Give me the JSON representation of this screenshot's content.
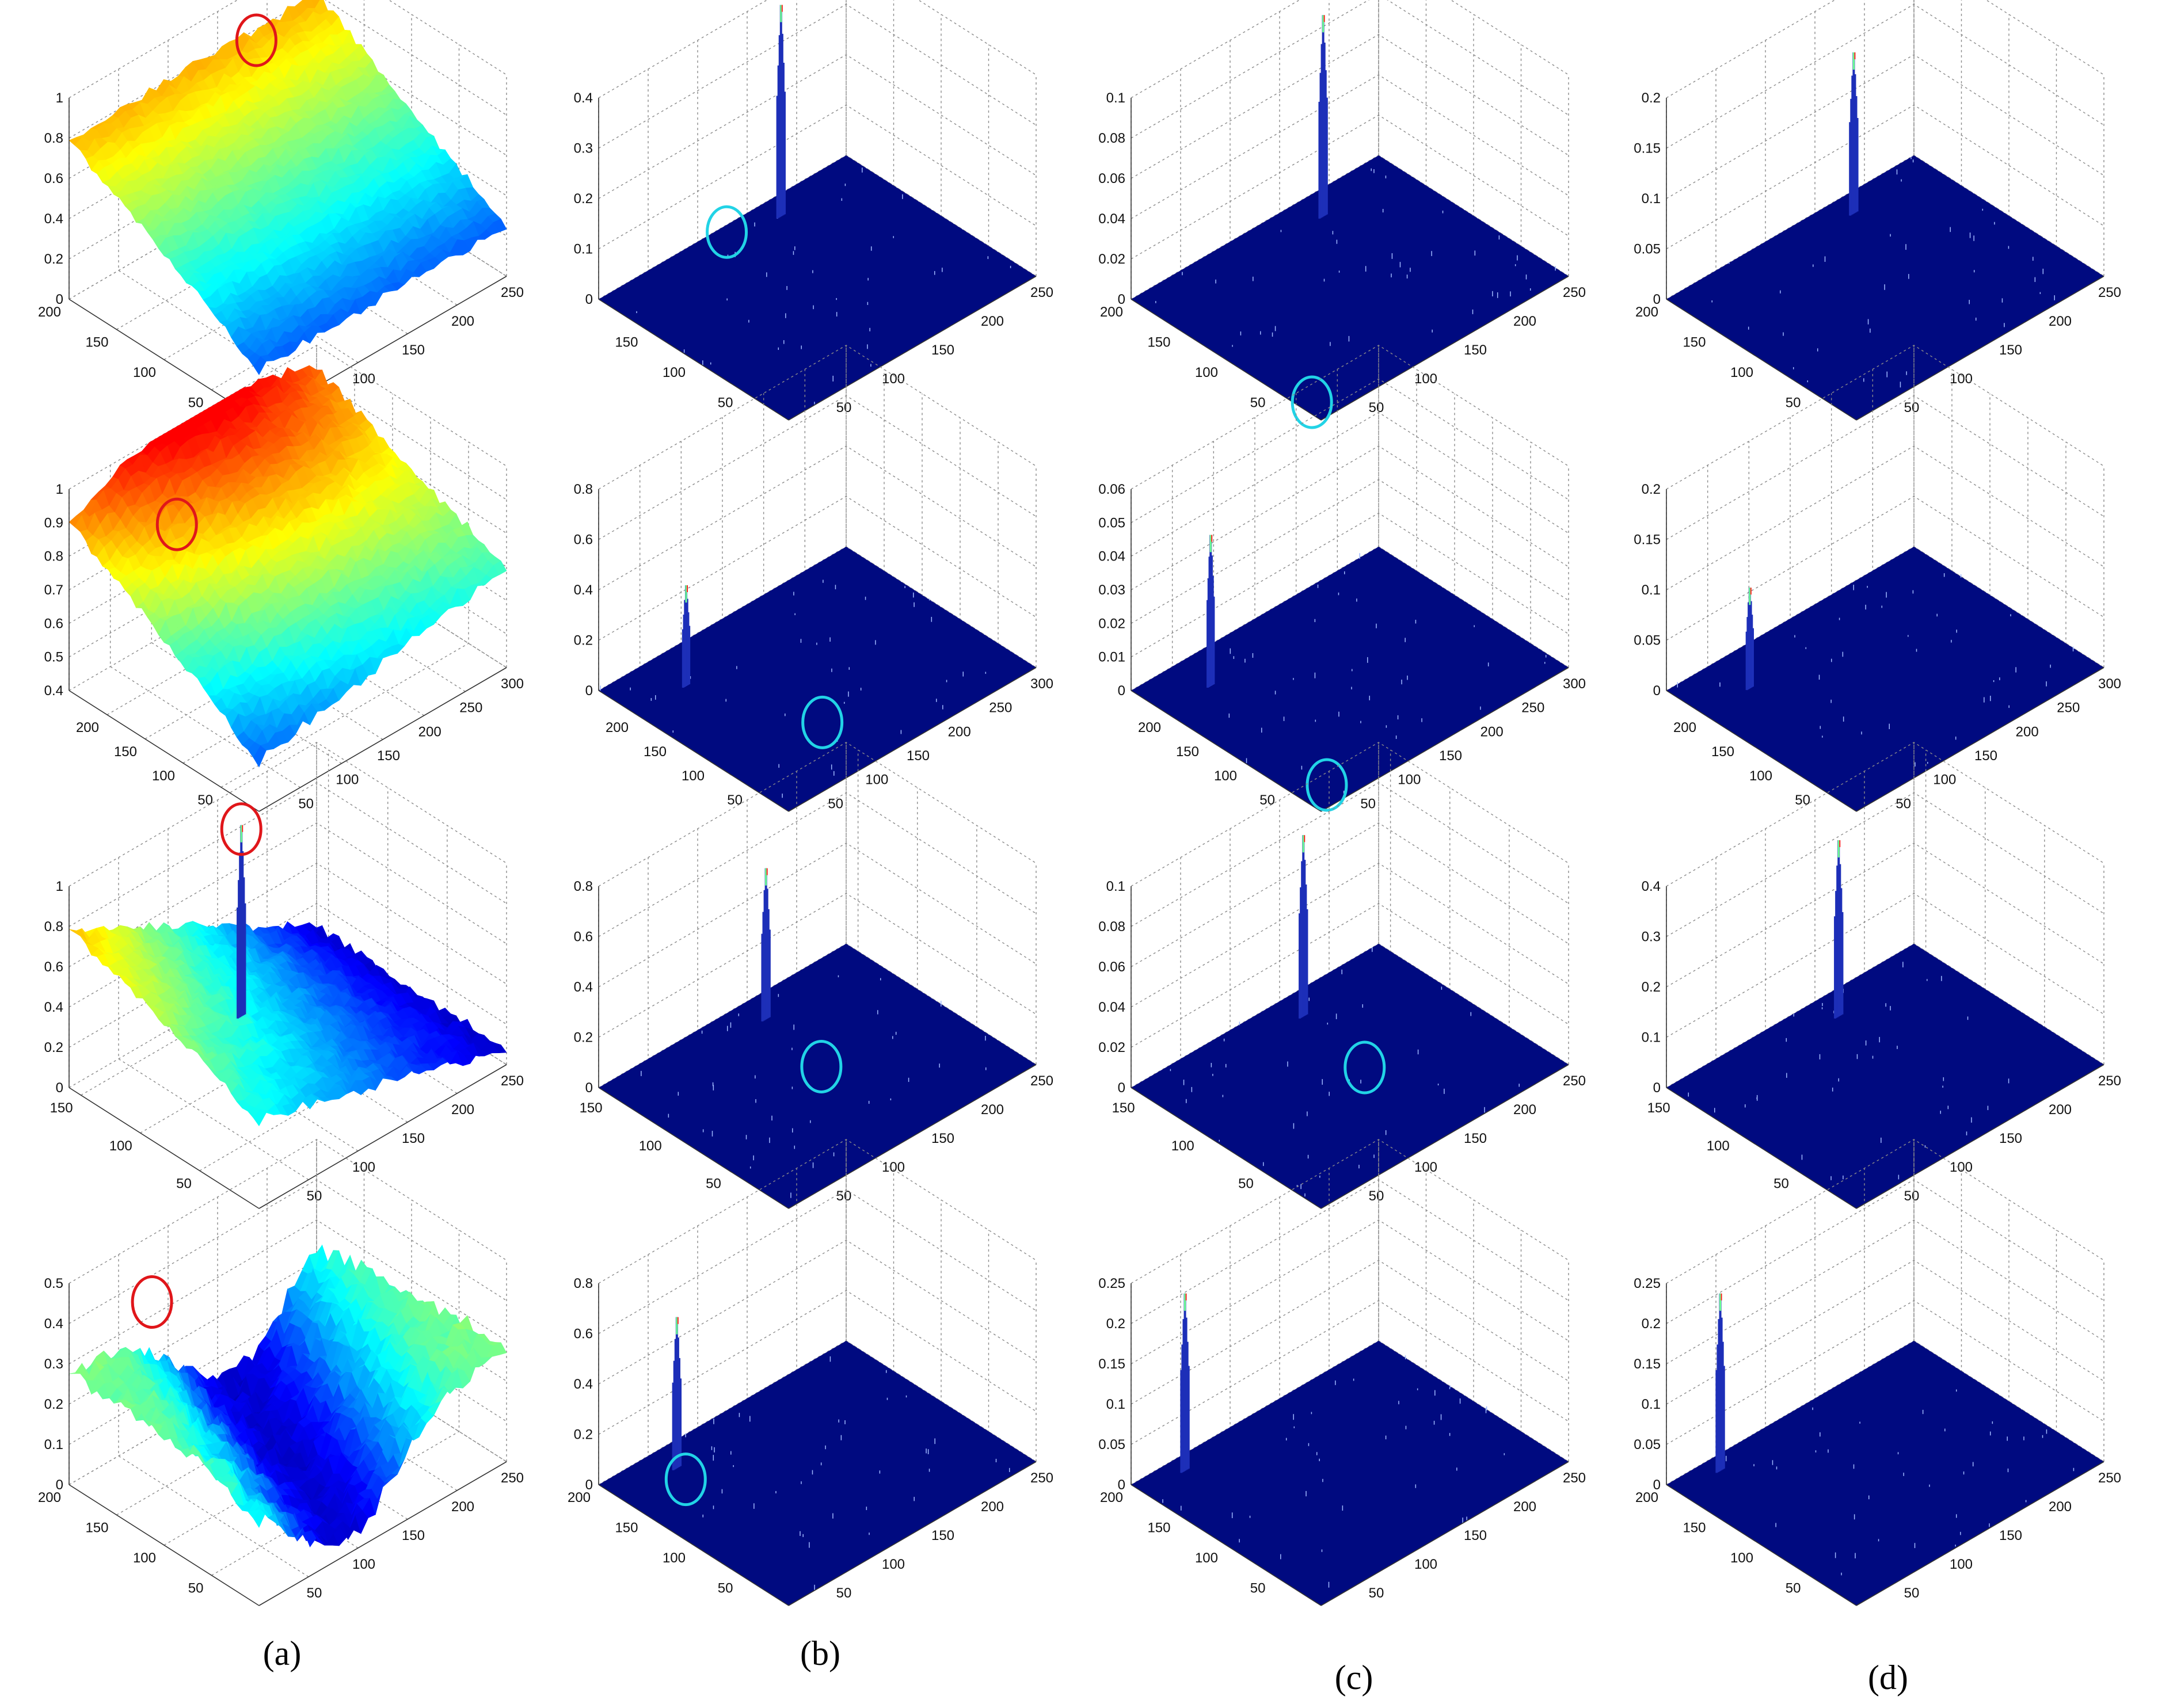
{
  "figure": {
    "column_captions": [
      "(a)",
      "(b)",
      "(c)",
      "(d)"
    ]
  },
  "style": {
    "floor_color": "#000a80",
    "peak_color": "#1d2fb8",
    "circle_red": "#e0161a",
    "circle_cyan": "#22d3e6",
    "grid_color": "#8a8a8a",
    "axis_color": "#333333",
    "colormap": [
      "#00008f",
      "#0000ff",
      "#0080ff",
      "#00ffff",
      "#80ff80",
      "#ffff00",
      "#ff8000",
      "#ff0000"
    ]
  },
  "chart_data": [
    {
      "row": 0,
      "col": 0,
      "type": "surface",
      "surface": "ramp",
      "xlim": [
        0,
        250
      ],
      "ylim": [
        0,
        200
      ],
      "zlim": [
        0,
        1
      ],
      "x_ticks": [
        "50",
        "100",
        "150",
        "200",
        "250"
      ],
      "y_ticks": [
        "50",
        "100",
        "150",
        "200"
      ],
      "z_ticks": [
        "0",
        "0.2",
        "0.4",
        "0.6",
        "0.8",
        "1"
      ],
      "circle": "red",
      "circle_pos": [
        170,
        180,
        0.86
      ]
    },
    {
      "row": 0,
      "col": 1,
      "type": "surface",
      "surface": "peaks",
      "xlim": [
        0,
        250
      ],
      "ylim": [
        0,
        200
      ],
      "zlim": [
        0,
        0.4
      ],
      "x_ticks": [
        "50",
        "100",
        "150",
        "200",
        "250"
      ],
      "y_ticks": [
        "50",
        "100",
        "150"
      ],
      "z_ticks": [
        "0",
        "0.1",
        "0.2",
        "0.3",
        "0.4"
      ],
      "peaks": [
        [
          165,
          180,
          0.42
        ]
      ],
      "circle": "cyan",
      "circle_pos": [
        115,
        185,
        0.02
      ]
    },
    {
      "row": 0,
      "col": 2,
      "type": "surface",
      "surface": "peaks",
      "xlim": [
        0,
        250
      ],
      "ylim": [
        0,
        200
      ],
      "zlim": [
        0,
        0.1
      ],
      "x_ticks": [
        "50",
        "100",
        "150",
        "200",
        "250"
      ],
      "y_ticks": [
        "50",
        "100",
        "150",
        "200"
      ],
      "z_ticks": [
        "0",
        "0.02",
        "0.04",
        "0.06",
        "0.08",
        "0.1"
      ],
      "peaks": [
        [
          170,
          175,
          0.1
        ]
      ],
      "circle": "cyan",
      "circle_pos": [
        10,
        20,
        0.0
      ]
    },
    {
      "row": 0,
      "col": 3,
      "type": "surface",
      "surface": "peaks",
      "xlim": [
        0,
        250
      ],
      "ylim": [
        0,
        200
      ],
      "zlim": [
        0,
        0.2
      ],
      "x_ticks": [
        "50",
        "100",
        "150",
        "200",
        "250"
      ],
      "y_ticks": [
        "50",
        "100",
        "150",
        "200"
      ],
      "z_ticks": [
        "0",
        "0.05",
        "0.1",
        "0.15",
        "0.2"
      ],
      "peaks": [
        [
          170,
          180,
          0.16
        ]
      ],
      "circle": "none"
    },
    {
      "row": 1,
      "col": 0,
      "type": "surface",
      "surface": "dome",
      "xlim": [
        0,
        300
      ],
      "ylim": [
        0,
        250
      ],
      "zlim": [
        0.4,
        1
      ],
      "x_ticks": [
        "50",
        "100",
        "150",
        "200",
        "250",
        "300"
      ],
      "y_ticks": [
        "50",
        "100",
        "150",
        "200"
      ],
      "z_ticks": [
        "0.4",
        "0.5",
        "0.6",
        "0.7",
        "0.8",
        "0.9",
        "1"
      ],
      "circle": "red",
      "circle_pos": [
        80,
        195,
        0.86
      ]
    },
    {
      "row": 1,
      "col": 1,
      "type": "surface",
      "surface": "peaks",
      "xlim": [
        0,
        300
      ],
      "ylim": [
        0,
        250
      ],
      "zlim": [
        0,
        0.8
      ],
      "x_ticks": [
        "50",
        "100",
        "150",
        "200",
        "250",
        "300"
      ],
      "y_ticks": [
        "50",
        "100",
        "150",
        "200"
      ],
      "z_ticks": [
        "0",
        "0.2",
        "0.4",
        "0.6",
        "0.8"
      ],
      "peaks": [
        [
          60,
          200,
          0.4
        ]
      ],
      "circle": "cyan",
      "circle_pos": [
        110,
        75,
        0.0
      ]
    },
    {
      "row": 1,
      "col": 2,
      "type": "surface",
      "surface": "peaks",
      "xlim": [
        0,
        300
      ],
      "ylim": [
        0,
        250
      ],
      "zlim": [
        0,
        0.06
      ],
      "x_ticks": [
        "50",
        "100",
        "150",
        "200",
        "250",
        "300"
      ],
      "y_ticks": [
        "50",
        "100",
        "150",
        "200"
      ],
      "z_ticks": [
        "0",
        "0.01",
        "0.02",
        "0.03",
        "0.04",
        "0.05",
        "0.06"
      ],
      "peaks": [
        [
          55,
          205,
          0.045
        ]
      ],
      "circle": "cyan",
      "circle_pos": [
        30,
        25,
        0.0
      ]
    },
    {
      "row": 1,
      "col": 3,
      "type": "surface",
      "surface": "peaks",
      "xlim": [
        0,
        300
      ],
      "ylim": [
        0,
        250
      ],
      "zlim": [
        0,
        0.2
      ],
      "x_ticks": [
        "50",
        "100",
        "150",
        "200",
        "250",
        "300"
      ],
      "y_ticks": [
        "50",
        "100",
        "150",
        "200"
      ],
      "z_ticks": [
        "0",
        "0.05",
        "0.1",
        "0.15",
        "0.2"
      ],
      "peaks": [
        [
          55,
          200,
          0.1
        ]
      ],
      "circle": "none"
    },
    {
      "row": 2,
      "col": 0,
      "type": "surface",
      "surface": "valley",
      "xlim": [
        0,
        250
      ],
      "ylim": [
        0,
        160
      ],
      "zlim": [
        0,
        1
      ],
      "x_ticks": [
        "50",
        "100",
        "150",
        "200",
        "250"
      ],
      "y_ticks": [
        "50",
        "100",
        "150"
      ],
      "z_ticks": [
        "0",
        "0.2",
        "0.4",
        "0.6",
        "0.8",
        "1"
      ],
      "peaks": [
        [
          150,
          140,
          0.95
        ]
      ],
      "circle": "red",
      "circle_pos": [
        150,
        140,
        0.93
      ]
    },
    {
      "row": 2,
      "col": 1,
      "type": "surface",
      "surface": "peaks",
      "xlim": [
        0,
        250
      ],
      "ylim": [
        0,
        160
      ],
      "zlim": [
        0,
        0.8
      ],
      "x_ticks": [
        "50",
        "100",
        "150",
        "200",
        "250"
      ],
      "y_ticks": [
        "50",
        "100",
        "150"
      ],
      "z_ticks": [
        "0",
        "0.2",
        "0.4",
        "0.6",
        "0.8"
      ],
      "peaks": [
        [
          145,
          140,
          0.6
        ]
      ],
      "circle": "cyan",
      "circle_pos": [
        135,
        85,
        0.0
      ]
    },
    {
      "row": 2,
      "col": 2,
      "type": "surface",
      "surface": "peaks",
      "xlim": [
        0,
        250
      ],
      "ylim": [
        0,
        160
      ],
      "zlim": [
        0,
        0.1
      ],
      "x_ticks": [
        "50",
        "100",
        "150",
        "200",
        "250"
      ],
      "y_ticks": [
        "50",
        "100",
        "150"
      ],
      "z_ticks": [
        "0",
        "0.02",
        "0.04",
        "0.06",
        "0.08",
        "0.1"
      ],
      "peaks": [
        [
          150,
          140,
          0.09
        ]
      ],
      "circle": "cyan",
      "circle_pos": [
        140,
        80,
        0.0
      ]
    },
    {
      "row": 2,
      "col": 3,
      "type": "surface",
      "surface": "peaks",
      "xlim": [
        0,
        250
      ],
      "ylim": [
        0,
        160
      ],
      "zlim": [
        0,
        0.4
      ],
      "x_ticks": [
        "50",
        "100",
        "150",
        "200",
        "250"
      ],
      "y_ticks": [
        "50",
        "100",
        "150"
      ],
      "z_ticks": [
        "0",
        "0.1",
        "0.2",
        "0.3",
        "0.4"
      ],
      "peaks": [
        [
          150,
          140,
          0.35
        ]
      ],
      "circle": "none"
    },
    {
      "row": 3,
      "col": 0,
      "type": "surface",
      "surface": "channel",
      "xlim": [
        0,
        250
      ],
      "ylim": [
        0,
        200
      ],
      "zlim": [
        0,
        0.5
      ],
      "x_ticks": [
        "50",
        "100",
        "150",
        "200",
        "250"
      ],
      "y_ticks": [
        "50",
        "100",
        "150",
        "200"
      ],
      "z_ticks": [
        "0",
        "0.1",
        "0.2",
        "0.3",
        "0.4",
        "0.5"
      ],
      "circle": "red",
      "circle_pos": [
        55,
        170,
        0.42
      ]
    },
    {
      "row": 3,
      "col": 1,
      "type": "surface",
      "surface": "peaks",
      "xlim": [
        0,
        250
      ],
      "ylim": [
        0,
        200
      ],
      "zlim": [
        0,
        0.8
      ],
      "x_ticks": [
        "50",
        "100",
        "150",
        "200",
        "250"
      ],
      "y_ticks": [
        "50",
        "100",
        "150",
        "200"
      ],
      "z_ticks": [
        "0",
        "0.2",
        "0.4",
        "0.6",
        "0.8"
      ],
      "peaks": [
        [
          55,
          175,
          0.6
        ]
      ],
      "circle": "cyan",
      "circle_pos": [
        40,
        150,
        0.05
      ]
    },
    {
      "row": 3,
      "col": 2,
      "type": "surface",
      "surface": "peaks",
      "xlim": [
        0,
        250
      ],
      "ylim": [
        0,
        200
      ],
      "zlim": [
        0,
        0.25
      ],
      "x_ticks": [
        "50",
        "100",
        "150",
        "200",
        "250"
      ],
      "y_ticks": [
        "50",
        "100",
        "150",
        "200"
      ],
      "z_ticks": [
        "0",
        "0.05",
        "0.1",
        "0.15",
        "0.2",
        "0.25"
      ],
      "peaks": [
        [
          40,
          185,
          0.22
        ]
      ],
      "circle": "none"
    },
    {
      "row": 3,
      "col": 3,
      "type": "surface",
      "surface": "peaks",
      "xlim": [
        0,
        250
      ],
      "ylim": [
        0,
        200
      ],
      "zlim": [
        0,
        0.25
      ],
      "x_ticks": [
        "50",
        "100",
        "150",
        "200",
        "250"
      ],
      "y_ticks": [
        "50",
        "100",
        "150",
        "200"
      ],
      "z_ticks": [
        "0",
        "0.05",
        "0.1",
        "0.15",
        "0.2",
        "0.25"
      ],
      "peaks": [
        [
          40,
          185,
          0.22
        ]
      ],
      "circle": "none"
    }
  ]
}
